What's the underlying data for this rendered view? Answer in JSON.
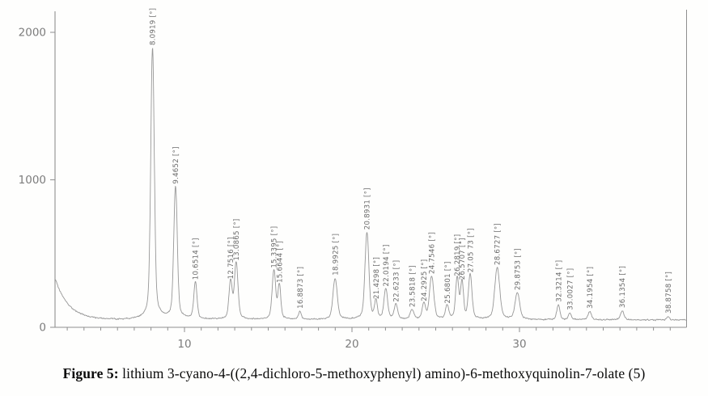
{
  "figure": {
    "caption_label": "Figure 5:",
    "caption_text": " lithium 3-cyano-4-((2,4-dichloro-5-methoxyphenyl) amino)-6-methoxyquinolin-7-olate (5)"
  },
  "chart_data": {
    "type": "line",
    "title": "",
    "xlabel": "",
    "ylabel": "",
    "legend": "none",
    "grid": false,
    "x_axis": {
      "min": 2.3,
      "max": 39.95,
      "major_ticks": [
        10,
        20,
        30
      ],
      "minor_tick_step": 1
    },
    "y_axis": {
      "min": 0,
      "max": 2200,
      "ticks": [
        0,
        1000,
        2000
      ]
    },
    "background_curve": {
      "base_level": 50,
      "decay_amplitude": 275,
      "decay_constant": 0.8,
      "noise_amplitude": 7
    },
    "peaks": [
      {
        "two_theta": 8.0919,
        "intensity": 1840,
        "width": 0.1,
        "label": "8.0919 [°]"
      },
      {
        "two_theta": 9.4652,
        "intensity": 900,
        "width": 0.1,
        "label": "9.4652 [°]"
      },
      {
        "two_theta": 10.6514,
        "intensity": 250,
        "width": 0.09,
        "label": "10.6514 [°]"
      },
      {
        "two_theta": 12.7516,
        "intensity": 255,
        "width": 0.09,
        "label": "12.7516 [°]"
      },
      {
        "two_theta": 13.0865,
        "intensity": 380,
        "width": 0.1,
        "label": "13.0865 [°]"
      },
      {
        "two_theta": 15.3395,
        "intensity": 330,
        "width": 0.1,
        "label": "15.3395 [°]"
      },
      {
        "two_theta": 15.6644,
        "intensity": 230,
        "width": 0.08,
        "label": "15.6644 [°]"
      },
      {
        "two_theta": 16.8873,
        "intensity": 55,
        "width": 0.08,
        "label": "16.8873 [°]"
      },
      {
        "two_theta": 18.9925,
        "intensity": 280,
        "width": 0.12,
        "label": "18.9925 [°]"
      },
      {
        "two_theta": 20.8931,
        "intensity": 590,
        "width": 0.11,
        "label": "20.8931 [°]"
      },
      {
        "two_theta": 21.4298,
        "intensity": 120,
        "width": 0.08,
        "label": "21.4298 [°]"
      },
      {
        "two_theta": 22.0194,
        "intensity": 205,
        "width": 0.1,
        "label": "22.0194 [°]"
      },
      {
        "two_theta": 22.6233,
        "intensity": 100,
        "width": 0.1,
        "label": "22.6233 [°]"
      },
      {
        "two_theta": 23.5818,
        "intensity": 65,
        "width": 0.1,
        "label": "23.5818 [°]"
      },
      {
        "two_theta": 24.2925,
        "intensity": 105,
        "width": 0.09,
        "label": "24.2925 [°]"
      },
      {
        "two_theta": 24.7546,
        "intensity": 290,
        "width": 0.12,
        "label": "24.7546 [°]"
      },
      {
        "two_theta": 25.6801,
        "intensity": 90,
        "width": 0.09,
        "label": "25.6801 [°]"
      },
      {
        "two_theta": 26.2819,
        "intensity": 275,
        "width": 0.09,
        "label": "26.2819 [°]"
      },
      {
        "two_theta": 26.5707,
        "intensity": 250,
        "width": 0.08,
        "label": "26.5707 [°]"
      },
      {
        "two_theta": 27.0573,
        "intensity": 300,
        "width": 0.1,
        "label": "27.05 73 [°]"
      },
      {
        "two_theta": 28.6727,
        "intensity": 350,
        "width": 0.14,
        "label": "28.6727 [°]"
      },
      {
        "two_theta": 29.8753,
        "intensity": 180,
        "width": 0.13,
        "label": "29.8753 [°]"
      },
      {
        "two_theta": 32.3214,
        "intensity": 100,
        "width": 0.09,
        "label": "32.3214 [°]"
      },
      {
        "two_theta": 33.0027,
        "intensity": 45,
        "width": 0.08,
        "label": "33.0027 [°]"
      },
      {
        "two_theta": 34.1954,
        "intensity": 55,
        "width": 0.1,
        "label": "34.1954 [°]"
      },
      {
        "two_theta": 36.1354,
        "intensity": 60,
        "width": 0.1,
        "label": "36.1354 [°]"
      },
      {
        "two_theta": 38.8758,
        "intensity": 22,
        "width": 0.08,
        "label": "38.8758 [°]"
      }
    ],
    "colors": {
      "trace": "#979797",
      "axis": "#8f8f8f",
      "tick_text": "#7c7c7c",
      "peak_label_text": "#6b6b6b"
    }
  }
}
